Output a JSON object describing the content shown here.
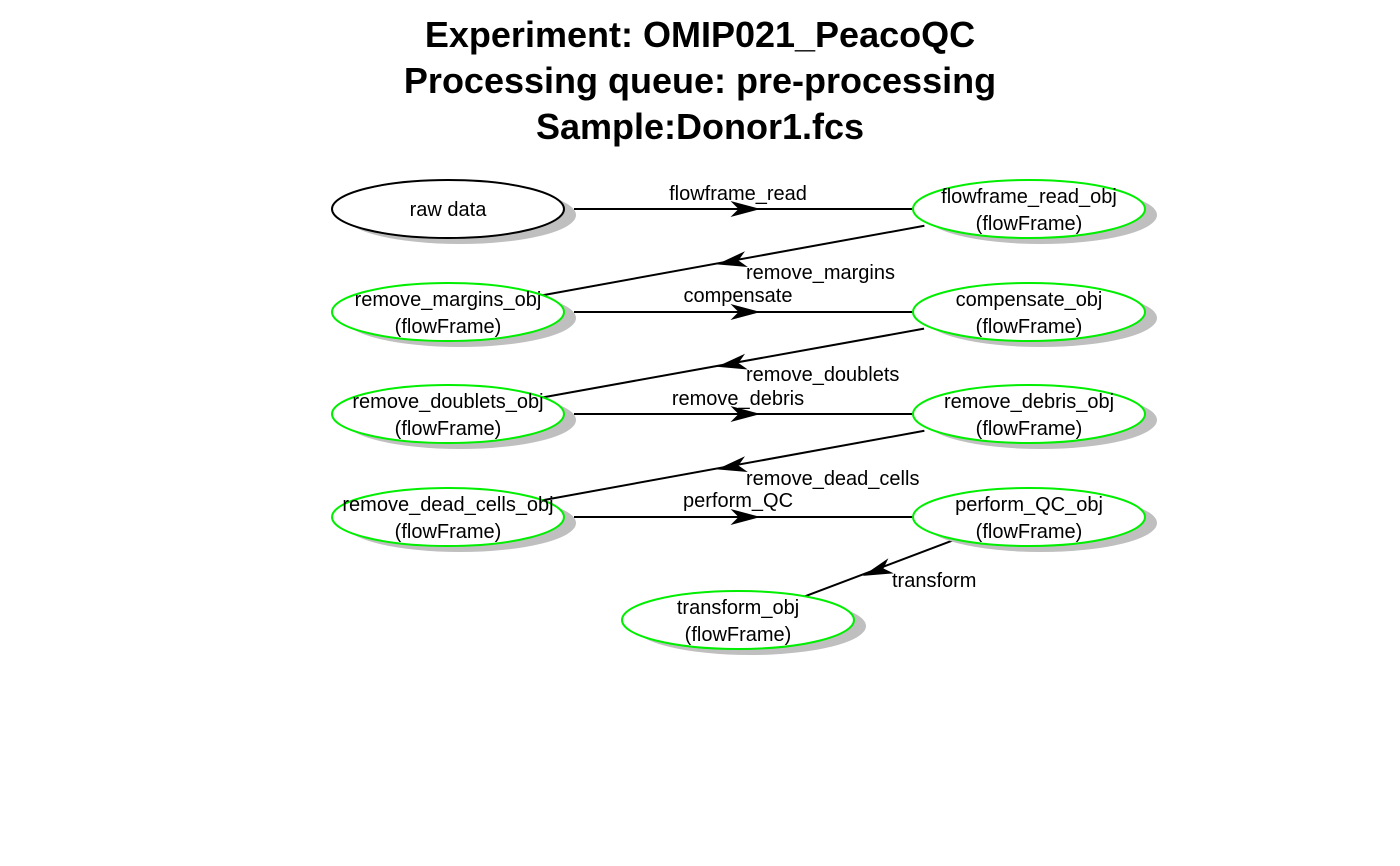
{
  "title": {
    "lines": [
      "Experiment: OMIP021_PeacoQC",
      "Processing queue: pre-processing",
      "Sample:Donor1.fcs"
    ]
  },
  "colors": {
    "object_border": "#00ee00",
    "raw_border": "#000000",
    "shadow": "#bfbfbf",
    "edge": "#000000"
  },
  "nodes": [
    {
      "id": "raw",
      "line1": "raw data",
      "line2": "",
      "border": "raw"
    },
    {
      "id": "flowframe_read_obj",
      "line1": "flowframe_read_obj",
      "line2": "(flowFrame)",
      "border": "object"
    },
    {
      "id": "remove_margins_obj",
      "line1": "remove_margins_obj",
      "line2": "(flowFrame)",
      "border": "object"
    },
    {
      "id": "compensate_obj",
      "line1": "compensate_obj",
      "line2": "(flowFrame)",
      "border": "object"
    },
    {
      "id": "remove_doublets_obj",
      "line1": "remove_doublets_obj",
      "line2": "(flowFrame)",
      "border": "object"
    },
    {
      "id": "remove_debris_obj",
      "line1": "remove_debris_obj",
      "line2": "(flowFrame)",
      "border": "object"
    },
    {
      "id": "remove_dead_cells_obj",
      "line1": "remove_dead_cells_obj",
      "line2": "(flowFrame)",
      "border": "object"
    },
    {
      "id": "perform_QC_obj",
      "line1": "perform_QC_obj",
      "line2": "(flowFrame)",
      "border": "object"
    },
    {
      "id": "transform_obj",
      "line1": "transform_obj",
      "line2": "(flowFrame)",
      "border": "object"
    }
  ],
  "edges": [
    {
      "from": "raw",
      "to": "flowframe_read_obj",
      "label": "flowframe_read"
    },
    {
      "from": "flowframe_read_obj",
      "to": "remove_margins_obj",
      "label": "remove_margins"
    },
    {
      "from": "remove_margins_obj",
      "to": "compensate_obj",
      "label": "compensate"
    },
    {
      "from": "compensate_obj",
      "to": "remove_doublets_obj",
      "label": "remove_doublets"
    },
    {
      "from": "remove_doublets_obj",
      "to": "remove_debris_obj",
      "label": "remove_debris"
    },
    {
      "from": "remove_debris_obj",
      "to": "remove_dead_cells_obj",
      "label": "remove_dead_cells"
    },
    {
      "from": "remove_dead_cells_obj",
      "to": "perform_QC_obj",
      "label": "perform_QC"
    },
    {
      "from": "perform_QC_obj",
      "to": "transform_obj",
      "label": "transform"
    }
  ]
}
